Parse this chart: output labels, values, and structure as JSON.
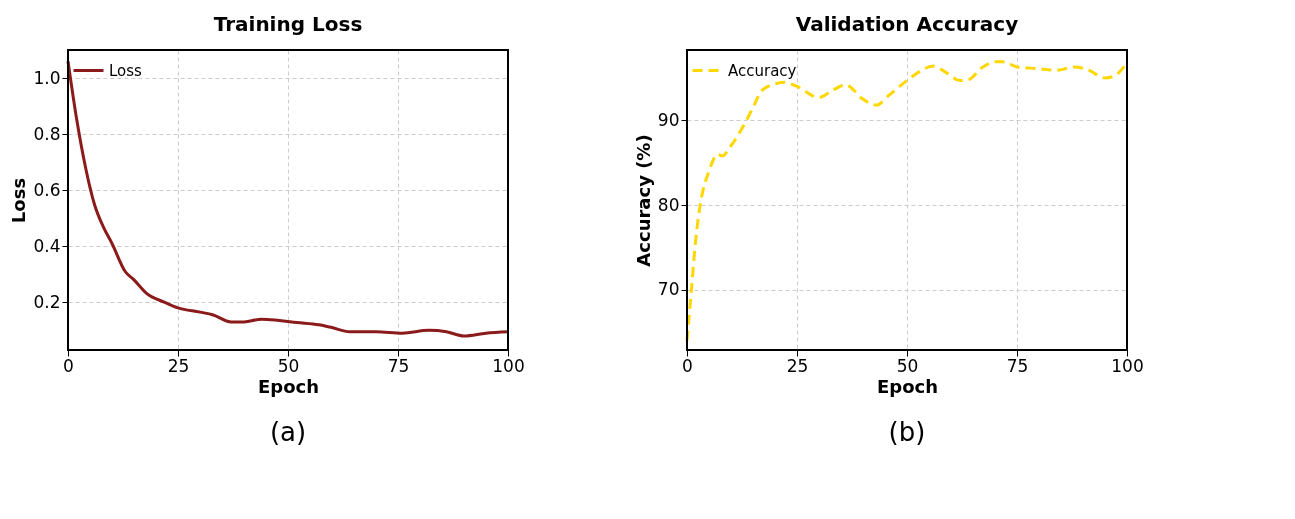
{
  "chart_data": [
    {
      "type": "line",
      "title": "Training Loss",
      "xlabel": "Epoch",
      "ylabel": "Loss",
      "x": [
        0,
        2,
        4,
        6,
        8,
        10,
        13,
        15,
        18,
        22,
        25,
        30,
        33,
        37,
        40,
        44,
        48,
        52,
        57,
        60,
        64,
        70,
        76,
        82,
        86,
        90,
        95,
        100
      ],
      "series": [
        {
          "name": "Loss",
          "color": "#8b1a1a",
          "line_style": "solid",
          "values": [
            1.06,
            0.85,
            0.68,
            0.55,
            0.47,
            0.41,
            0.31,
            0.28,
            0.23,
            0.2,
            0.18,
            0.165,
            0.155,
            0.13,
            0.13,
            0.14,
            0.135,
            0.128,
            0.12,
            0.11,
            0.095,
            0.095,
            0.09,
            0.1,
            0.095,
            0.08,
            0.09,
            0.095
          ]
        }
      ],
      "xlim": [
        0,
        100
      ],
      "xticks": [
        0,
        25,
        50,
        75,
        100
      ],
      "ylim": [
        0.03,
        1.1
      ],
      "yticks": [
        {
          "value": 0.2,
          "label": "0.2"
        },
        {
          "value": 0.4,
          "label": "0.4"
        },
        {
          "value": 0.6,
          "label": "0.6"
        },
        {
          "value": 0.8,
          "label": "0.8"
        },
        {
          "value": 1.0,
          "label": "1.0"
        }
      ],
      "grid": true,
      "legend": "top left",
      "marker": "none",
      "annotations": [
        "(a)"
      ]
    },
    {
      "type": "line",
      "title": "Validation Accuracy",
      "xlabel": "Epoch",
      "ylabel": "Accuracy (%)",
      "x": [
        0,
        1,
        2,
        3,
        5,
        7,
        8,
        10,
        13,
        15,
        17,
        20,
        22,
        25,
        30,
        33,
        36,
        40,
        43,
        46,
        50,
        53,
        56,
        59,
        62,
        64,
        67,
        70,
        72,
        75,
        80,
        84,
        88,
        91,
        95,
        97,
        100
      ],
      "series": [
        {
          "name": "Accuracy",
          "color": "#ffd700",
          "line_style": "dashed",
          "values": [
            64,
            70,
            76,
            80,
            84,
            86,
            85.8,
            87,
            89.5,
            91.5,
            93.5,
            94.3,
            94.5,
            94,
            92.7,
            93.5,
            94.2,
            92.5,
            91.8,
            93,
            94.7,
            95.8,
            96.4,
            95.6,
            94.7,
            94.8,
            96.2,
            96.9,
            96.9,
            96.3,
            96.1,
            95.9,
            96.3,
            96,
            95,
            95.2,
            96.8
          ]
        }
      ],
      "xlim": [
        0,
        100
      ],
      "xticks": [
        0,
        25,
        50,
        75,
        100
      ],
      "ylim": [
        62.9,
        98.3
      ],
      "yticks": [
        70,
        80,
        90
      ],
      "grid": true,
      "legend": "top left",
      "marker": "none",
      "annotations": [
        "(b)"
      ]
    }
  ]
}
